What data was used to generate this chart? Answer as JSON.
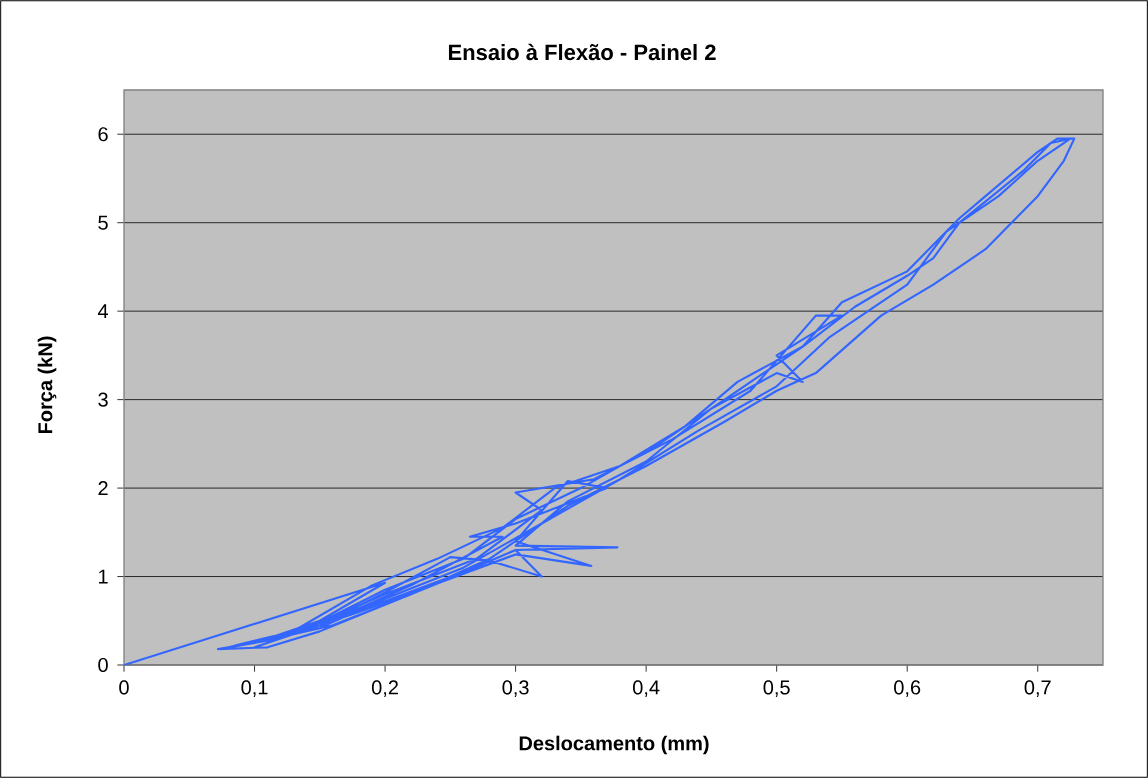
{
  "chart_data": {
    "type": "line",
    "title": "Ensaio à Flexão - Painel 2",
    "xlabel": "Deslocamento (mm)",
    "ylabel": "Força (kN)",
    "x": [
      0,
      0.2,
      0.15,
      0.1,
      0.072,
      0.11,
      0.15,
      0.2,
      0.25,
      0.3,
      0.32,
      0.28,
      0.25,
      0.2,
      0.15,
      0.1,
      0.08,
      0.12,
      0.18,
      0.24,
      0.3,
      0.358,
      0.3,
      0.34,
      0.37,
      0.3,
      0.265,
      0.29,
      0.22,
      0.15,
      0.085,
      0.13,
      0.2,
      0.26,
      0.3,
      0.378,
      0.3,
      0.34,
      0.4,
      0.45,
      0.5,
      0.52,
      0.5,
      0.55,
      0.53,
      0.48,
      0.42,
      0.36,
      0.3,
      0.32,
      0.27,
      0.2,
      0.14,
      0.1,
      0.15,
      0.2,
      0.26,
      0.32,
      0.38,
      0.44,
      0.5,
      0.54,
      0.6,
      0.63,
      0.67,
      0.7,
      0.725,
      0.71,
      0.69,
      0.64,
      0.62,
      0.6,
      0.56,
      0.52,
      0.47,
      0.41,
      0.35,
      0.3,
      0.26,
      0.2,
      0.15,
      0.11,
      0.16,
      0.22,
      0.28,
      0.34,
      0.4,
      0.46,
      0.5,
      0.53,
      0.58,
      0.62,
      0.66,
      0.7,
      0.72,
      0.728,
      0.715,
      0.7,
      0.66,
      0.64,
      0.6,
      0.55,
      0.52,
      0.47,
      0.43,
      0.38,
      0.33,
      0.29,
      0.24,
      0.19,
      0.12,
      0.1
    ],
    "values": [
      0,
      0.93,
      0.5,
      0.25,
      0.18,
      0.2,
      0.38,
      0.68,
      0.98,
      1.3,
      1.0,
      1.18,
      1.22,
      0.82,
      0.45,
      0.27,
      0.2,
      0.3,
      0.6,
      0.92,
      1.25,
      1.12,
      1.4,
      2.08,
      2.0,
      1.6,
      1.45,
      1.45,
      0.9,
      0.45,
      0.22,
      0.38,
      0.72,
      1.05,
      1.3,
      1.33,
      1.35,
      1.85,
      2.3,
      2.9,
      3.3,
      3.2,
      3.5,
      3.95,
      3.95,
      3.1,
      2.55,
      2.1,
      1.95,
      1.75,
      1.2,
      0.8,
      0.42,
      0.25,
      0.42,
      0.75,
      1.1,
      1.6,
      2.1,
      2.65,
      3.15,
      3.7,
      4.3,
      4.9,
      5.3,
      5.7,
      5.95,
      5.9,
      5.6,
      5.0,
      4.6,
      4.4,
      4.05,
      3.6,
      3.1,
      2.5,
      2.0,
      1.65,
      1.2,
      0.85,
      0.48,
      0.28,
      0.45,
      0.8,
      1.2,
      1.8,
      2.25,
      2.75,
      3.1,
      3.3,
      3.95,
      4.3,
      4.7,
      5.3,
      5.7,
      5.95,
      5.95,
      5.8,
      5.3,
      5.05,
      4.45,
      4.1,
      3.6,
      3.2,
      2.7,
      2.25,
      2.0,
      1.55,
      1.2,
      0.9,
      0.3,
      0.2
    ],
    "color": "#3366ff",
    "marker": "none",
    "line_style": "solid",
    "grid": "y",
    "xlim": [
      0,
      0.75
    ],
    "ylim": [
      0,
      6.5
    ],
    "xticks": [
      0,
      {
        "value": 0.1,
        "label": "0,1"
      },
      {
        "value": 0.2,
        "label": "0,2"
      },
      {
        "value": 0.3,
        "label": "0,3"
      },
      {
        "value": 0.4,
        "label": "0,4"
      },
      {
        "value": 0.5,
        "label": "0,5"
      },
      {
        "value": 0.6,
        "label": "0,6"
      },
      {
        "value": 0.7,
        "label": "0,7"
      }
    ],
    "yticks": [
      0,
      1,
      2,
      3,
      4,
      5,
      6
    ]
  }
}
